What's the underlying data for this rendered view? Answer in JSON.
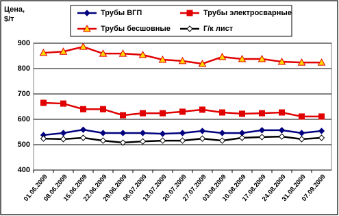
{
  "chart_data": {
    "type": "line",
    "ylabel": [
      "Цена,",
      "$/т"
    ],
    "categories": [
      "01.06.2009",
      "08.06.2009",
      "15.06.2009",
      "22.06.2009",
      "29.06.2009",
      "06.07.2009",
      "13.07.2009",
      "20.07.2009",
      "27.07.2009",
      "03.08.2009",
      "10.08.2009",
      "17.08.2009",
      "24.08.2009",
      "31.08.2009",
      "07.09.2009"
    ],
    "series": [
      {
        "name": "Трубы ВГП",
        "color": "#00007f",
        "marker": "diamond",
        "marker_fill": "#00007f",
        "values": [
          538,
          546,
          559,
          546,
          546,
          546,
          543,
          546,
          554,
          546,
          546,
          557,
          557,
          546,
          554
        ]
      },
      {
        "name": "Трубы электросварные",
        "color": "#e00000",
        "marker": "square",
        "marker_fill": "#e00000",
        "values": [
          665,
          662,
          640,
          640,
          616,
          624,
          624,
          630,
          638,
          627,
          622,
          624,
          627,
          611,
          611
        ]
      },
      {
        "name": "Трубы бесшовные",
        "color": "#e00000",
        "marker": "triangle",
        "marker_fill": "#ffd700",
        "values": [
          862,
          867,
          886,
          859,
          859,
          854,
          835,
          830,
          819,
          846,
          838,
          838,
          827,
          824,
          824
        ]
      },
      {
        "name": "Г/к лист",
        "color": "#000000",
        "marker": "diamond",
        "marker_fill": "#ffffff",
        "values": [
          524,
          522,
          527,
          516,
          508,
          513,
          516,
          516,
          524,
          516,
          527,
          530,
          532,
          522,
          527
        ]
      }
    ],
    "ylim": [
      400,
      900
    ],
    "yticks": [
      400,
      500,
      600,
      700,
      800,
      900
    ],
    "grid": true
  }
}
